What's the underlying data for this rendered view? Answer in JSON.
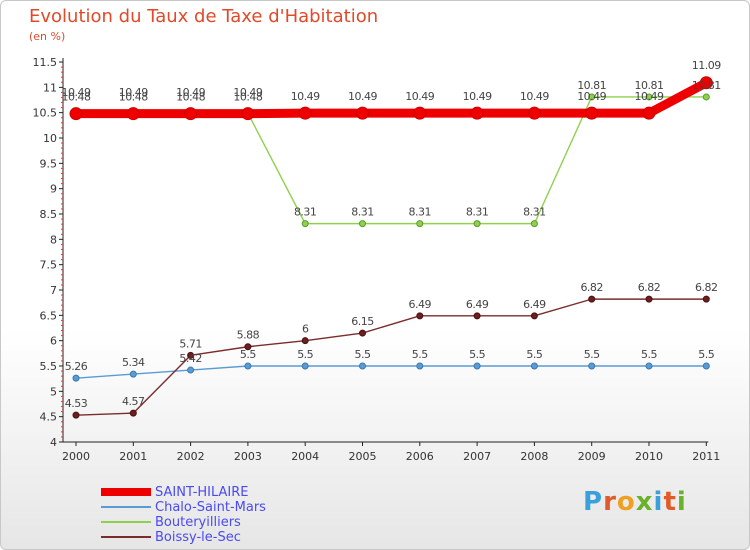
{
  "title": "Evolution du Taux de Taxe d'Habitation",
  "unit_label": "(en %)",
  "brand": {
    "text": "Proxiti",
    "letter_colors": [
      "#3aa0dc",
      "#e05a2a",
      "#f0a020",
      "#6ab22c",
      "#3aa0dc",
      "#e05a2a",
      "#6ab22c"
    ]
  },
  "chart_data": {
    "type": "line",
    "categories": [
      "2000",
      "2001",
      "2002",
      "2003",
      "2004",
      "2005",
      "2006",
      "2007",
      "2008",
      "2009",
      "2010",
      "2011"
    ],
    "ylim": [
      4,
      11.5
    ],
    "yticks": [
      "4",
      "4.5",
      "5",
      "5.5",
      "6",
      "6.5",
      "7",
      "7.5",
      "8",
      "8.5",
      "9",
      "9.5",
      "10",
      "10.5",
      "11",
      "11.5"
    ],
    "grid": false,
    "legend_position": "bottom-left",
    "series": [
      {
        "name": "SAINT-HILAIRE",
        "color": "#ee0000",
        "values": [
          10.48,
          10.48,
          10.48,
          10.48,
          10.49,
          10.49,
          10.49,
          10.49,
          10.49,
          10.49,
          10.49,
          11.09
        ],
        "labels": [
          "10.48",
          "10.48",
          "10.48",
          "10.48",
          "10.49",
          "10.49",
          "10.49",
          "10.49",
          "10.49",
          "10.49",
          "10.49",
          "11.09"
        ]
      },
      {
        "name": "Chalo-Saint-Mars",
        "color": "#5b9bd5",
        "values": [
          5.26,
          5.34,
          5.42,
          5.5,
          5.5,
          5.5,
          5.5,
          5.5,
          5.5,
          5.5,
          5.5,
          5.5
        ],
        "labels": [
          "5.26",
          "5.34",
          "5.42",
          "5.5",
          "5.5",
          "5.5",
          "5.5",
          "5.5",
          "5.5",
          "5.5",
          "5.5",
          "5.5"
        ]
      },
      {
        "name": "Bouteryilliers",
        "color": "#8fd14f",
        "values": [
          10.49,
          10.49,
          10.49,
          10.49,
          8.31,
          8.31,
          8.31,
          8.31,
          8.31,
          10.81,
          10.81,
          10.81
        ],
        "labels": [
          "10.49",
          "10.49",
          "10.49",
          "10.49",
          "8.31",
          "8.31",
          "8.31",
          "8.31",
          "8.31",
          "10.81",
          "10.81",
          "10.81"
        ]
      },
      {
        "name": "Boissy-le-Sec",
        "color": "#7b2c2c",
        "values": [
          4.53,
          4.57,
          5.71,
          5.88,
          6,
          6.15,
          6.49,
          6.49,
          6.49,
          6.82,
          6.82,
          6.82
        ],
        "labels": [
          "4.53",
          "4.57",
          "5.71",
          "5.88",
          "6",
          "6.15",
          "6.49",
          "6.49",
          "6.49",
          "6.82",
          "6.82",
          "6.82"
        ]
      }
    ]
  }
}
